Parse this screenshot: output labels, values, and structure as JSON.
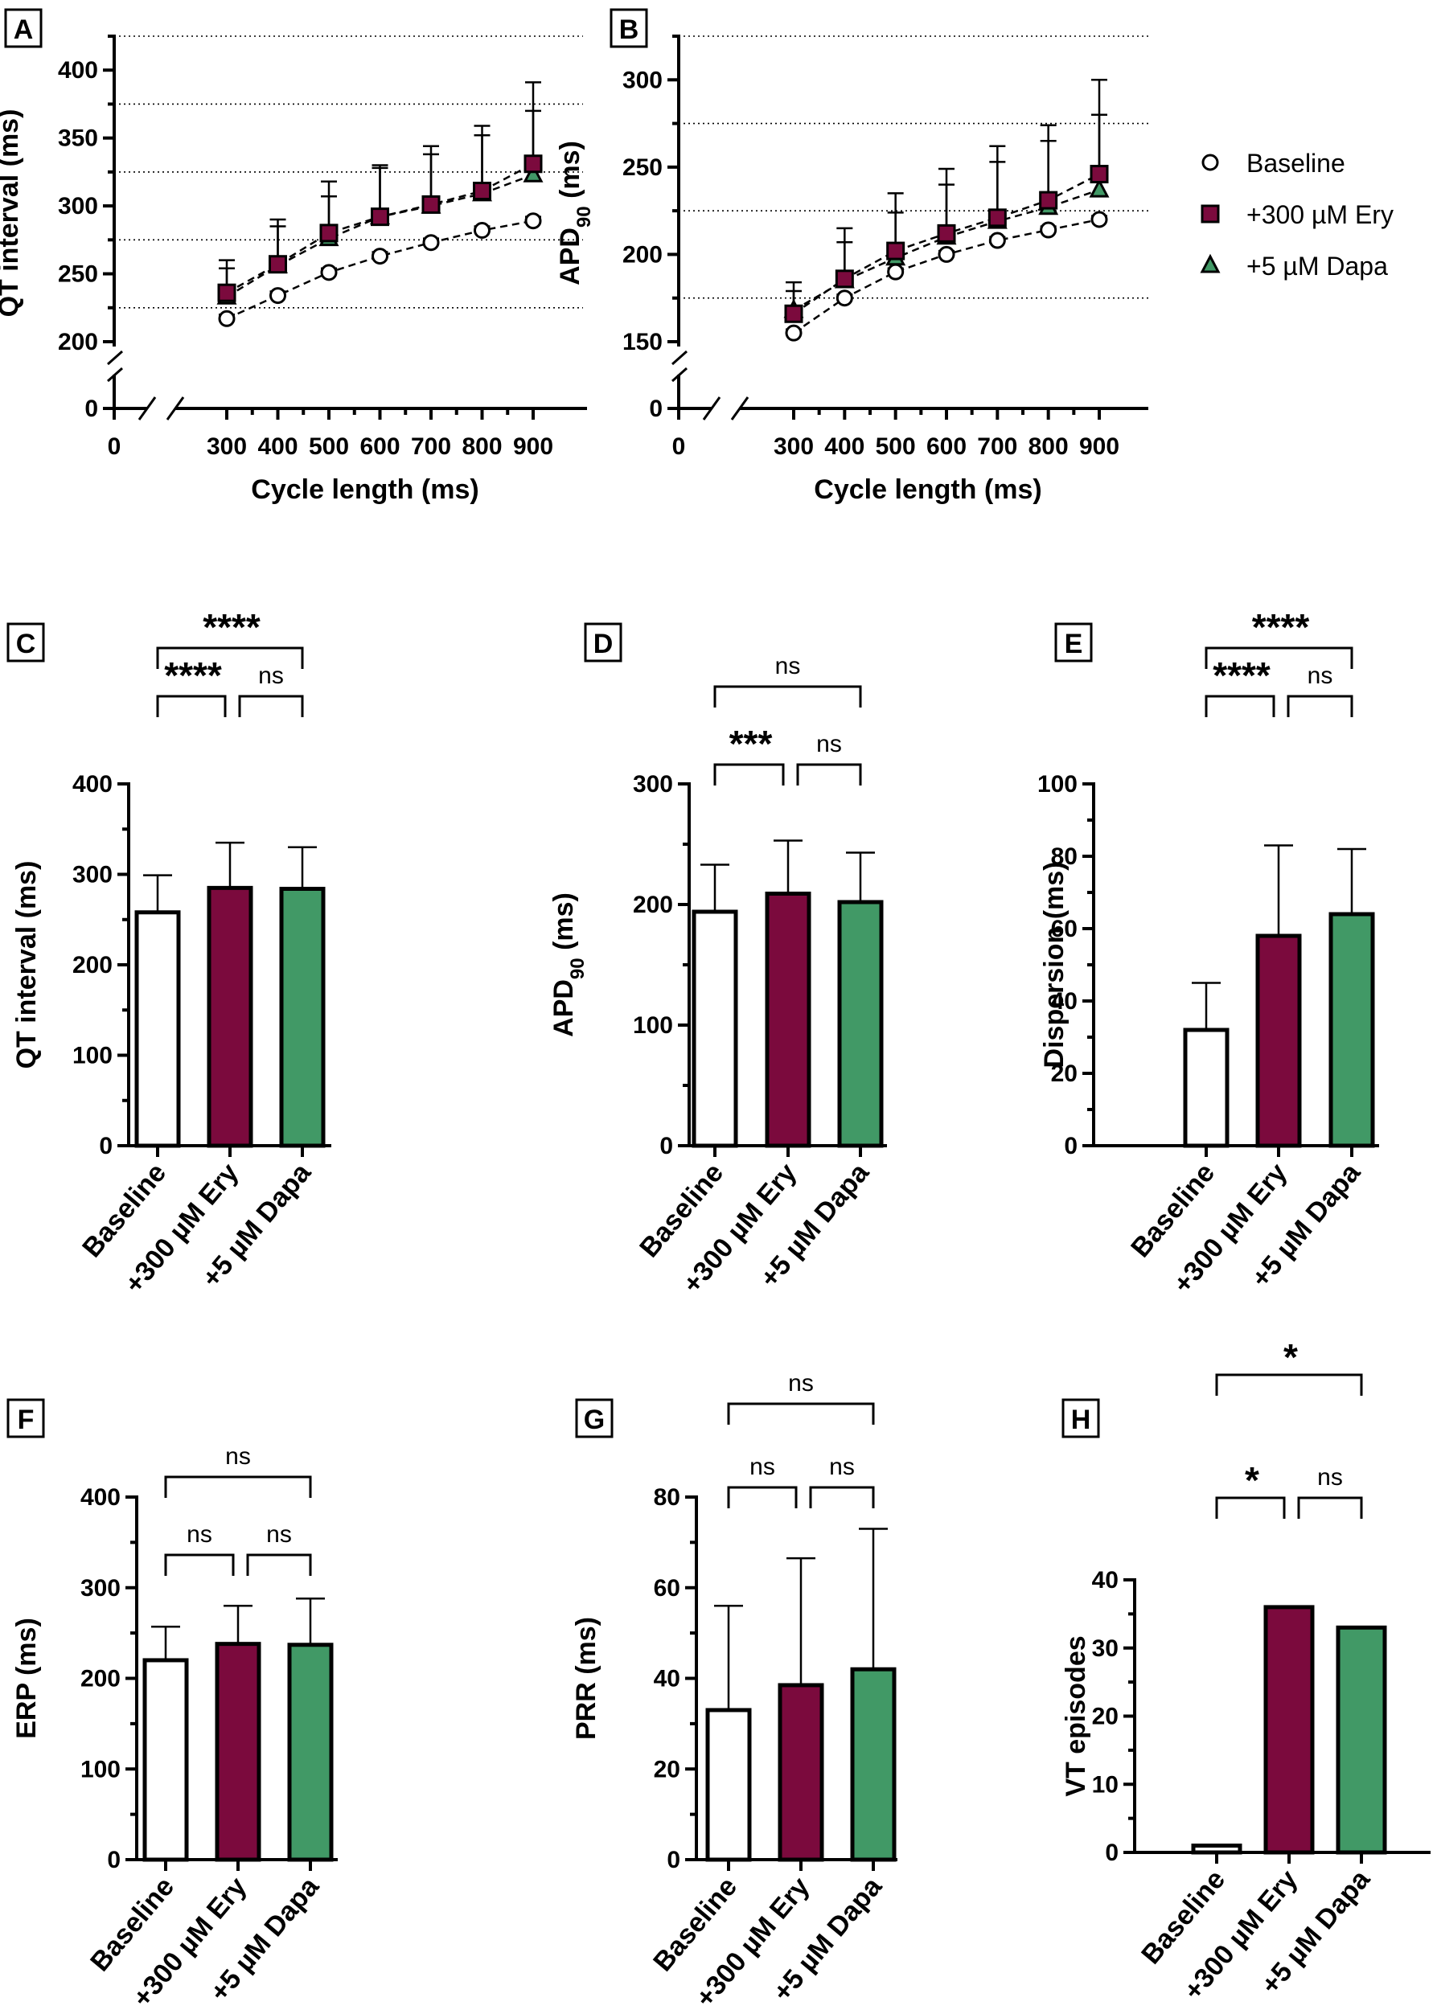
{
  "colors": {
    "baseline": "#ffffff",
    "ery": "#7b0a3d",
    "dapa": "#419966",
    "axis": "#000000"
  },
  "legend": [
    {
      "label": "Baseline",
      "marker": "circle"
    },
    {
      "label": "+300 µM Ery",
      "marker": "square"
    },
    {
      "label": "+5 µM Dapa",
      "marker": "triangle"
    }
  ],
  "chart_data": [
    {
      "panel": "A",
      "type": "line",
      "xlabel": "Cycle length (ms)",
      "ylabel": "QT interval (ms)",
      "x": [
        300,
        400,
        500,
        600,
        700,
        800,
        900
      ],
      "x_ticks": [
        "0",
        "300",
        "400",
        "500",
        "600",
        "700",
        "800",
        "900"
      ],
      "y_ticks": [
        "0",
        "200",
        "250",
        "300",
        "350",
        "400"
      ],
      "ylim": [
        200,
        425
      ],
      "axis_break": true,
      "reference_lines": [
        225,
        275,
        325,
        375,
        425
      ],
      "series": [
        {
          "name": "Baseline",
          "values": [
            217,
            234,
            251,
            263,
            273,
            282,
            289
          ],
          "err": [
            3,
            3,
            3,
            3,
            3,
            3,
            3
          ]
        },
        {
          "name": "+300 µM Ery",
          "values": [
            236,
            257,
            280,
            292,
            301,
            311,
            331
          ],
          "err": [
            24,
            33,
            38,
            38,
            43,
            48,
            60
          ]
        },
        {
          "name": "+5 µM Dapa",
          "values": [
            233,
            256,
            276,
            292,
            300,
            309,
            323
          ],
          "err": [
            21,
            29,
            31,
            36,
            38,
            43,
            47
          ]
        }
      ]
    },
    {
      "panel": "B",
      "type": "line",
      "xlabel": "Cycle length (ms)",
      "ylabel_main": "APD",
      "ylabel_sub": "90",
      "ylabel_tail": " (ms)",
      "x": [
        300,
        400,
        500,
        600,
        700,
        800,
        900
      ],
      "x_ticks": [
        "0",
        "300",
        "400",
        "500",
        "600",
        "700",
        "800",
        "900"
      ],
      "y_ticks": [
        "0",
        "150",
        "200",
        "250",
        "300"
      ],
      "ylim": [
        150,
        325
      ],
      "axis_break": true,
      "reference_lines": [
        175,
        225,
        275,
        325
      ],
      "series": [
        {
          "name": "Baseline",
          "values": [
            155,
            175,
            190,
            200,
            208,
            214,
            220
          ],
          "err": [
            2,
            2,
            2,
            2,
            2,
            2,
            2
          ]
        },
        {
          "name": "+300 µM Ery",
          "values": [
            166,
            186,
            202,
            212,
            221,
            231,
            246
          ],
          "err": [
            18,
            29,
            33,
            37,
            41,
            43,
            54
          ]
        },
        {
          "name": "+5 µM Dapa",
          "values": [
            168,
            185,
            198,
            210,
            219,
            227,
            237
          ],
          "err": [
            11,
            22,
            26,
            30,
            34,
            38,
            43
          ]
        }
      ]
    },
    {
      "panel": "C",
      "type": "bar",
      "ylabel": "QT interval (ms)",
      "categories": [
        "Baseline",
        "+300 µM Ery",
        "+5 µM Dapa"
      ],
      "values": [
        258,
        285,
        284
      ],
      "err": [
        41,
        50,
        46
      ],
      "ylim": [
        0,
        400
      ],
      "y_ticks": [
        "0",
        "100",
        "200",
        "300",
        "400"
      ],
      "brackets": [
        {
          "a": 0,
          "b": 1,
          "label": "****"
        },
        {
          "a": 1,
          "b": 2,
          "label": "ns"
        },
        {
          "a": 0,
          "b": 2,
          "label": "****"
        }
      ]
    },
    {
      "panel": "D",
      "type": "bar",
      "ylabel_main": "APD",
      "ylabel_sub": "90",
      "ylabel_tail": " (ms)",
      "categories": [
        "Baseline",
        "+300 µM Ery",
        "+5 µM Dapa"
      ],
      "values": [
        194,
        209,
        202
      ],
      "err": [
        39,
        44,
        41
      ],
      "ylim": [
        0,
        300
      ],
      "y_ticks": [
        "0",
        "100",
        "200",
        "300"
      ],
      "brackets": [
        {
          "a": 0,
          "b": 1,
          "label": "***"
        },
        {
          "a": 1,
          "b": 2,
          "label": "ns"
        },
        {
          "a": 0,
          "b": 2,
          "label": "ns"
        }
      ]
    },
    {
      "panel": "E",
      "type": "bar",
      "ylabel": "Dispersion (ms)",
      "categories": [
        "Baseline",
        "+300 µM Ery",
        "+5 µM Dapa"
      ],
      "values": [
        32,
        58,
        64
      ],
      "err": [
        13,
        25,
        18
      ],
      "ylim": [
        0,
        100
      ],
      "y_ticks": [
        "0",
        "20",
        "40",
        "60",
        "80",
        "100"
      ],
      "brackets": [
        {
          "a": 0,
          "b": 1,
          "label": "****"
        },
        {
          "a": 1,
          "b": 2,
          "label": "ns"
        },
        {
          "a": 0,
          "b": 2,
          "label": "****"
        }
      ]
    },
    {
      "panel": "F",
      "type": "bar",
      "ylabel": "ERP (ms)",
      "categories": [
        "Baseline",
        "+300 µM Ery",
        "+5 µM Dapa"
      ],
      "values": [
        220,
        238,
        237
      ],
      "err": [
        37,
        42,
        51
      ],
      "ylim": [
        0,
        400
      ],
      "y_ticks": [
        "0",
        "100",
        "200",
        "300",
        "400"
      ],
      "brackets": [
        {
          "a": 0,
          "b": 1,
          "label": "ns"
        },
        {
          "a": 1,
          "b": 2,
          "label": "ns"
        },
        {
          "a": 0,
          "b": 2,
          "label": "ns"
        }
      ]
    },
    {
      "panel": "G",
      "type": "bar",
      "ylabel": "PRR (ms)",
      "categories": [
        "Baseline",
        "+300 µM Ery",
        "+5 µM Dapa"
      ],
      "values": [
        33,
        38.5,
        42
      ],
      "err": [
        23,
        28,
        31
      ],
      "ylim": [
        0,
        80
      ],
      "y_ticks": [
        "0",
        "20",
        "40",
        "60",
        "80"
      ],
      "brackets": [
        {
          "a": 0,
          "b": 1,
          "label": "ns"
        },
        {
          "a": 1,
          "b": 2,
          "label": "ns"
        },
        {
          "a": 0,
          "b": 2,
          "label": "ns"
        }
      ]
    },
    {
      "panel": "H",
      "type": "bar",
      "ylabel": "VT episodes",
      "categories": [
        "Baseline",
        "+300 µM Ery",
        "+5 µM Dapa"
      ],
      "values": [
        1,
        36,
        33
      ],
      "err": [
        0,
        0,
        0
      ],
      "ylim": [
        0,
        40
      ],
      "y_ticks": [
        "0",
        "10",
        "20",
        "30",
        "40"
      ],
      "brackets": [
        {
          "a": 0,
          "b": 1,
          "label": "*"
        },
        {
          "a": 1,
          "b": 2,
          "label": "ns"
        },
        {
          "a": 0,
          "b": 2,
          "label": "*"
        }
      ]
    }
  ]
}
